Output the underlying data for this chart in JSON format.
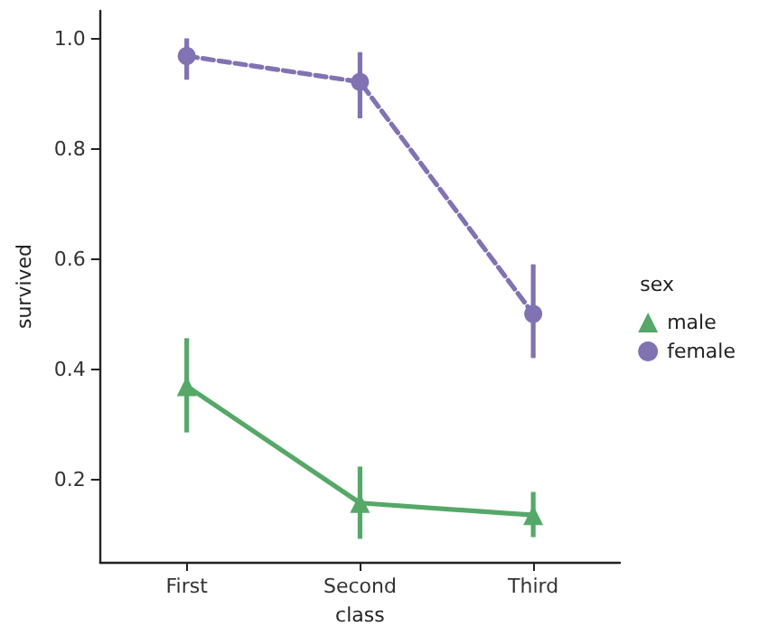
{
  "chart_data": {
    "type": "line",
    "xlabel": "class",
    "ylabel": "survived",
    "legend_title": "sex",
    "categories": [
      "First",
      "Second",
      "Third"
    ],
    "series": [
      {
        "name": "male",
        "color": "#55a868",
        "marker": "triangle",
        "line_style": "solid",
        "values": [
          0.369,
          0.157,
          0.135
        ],
        "errors": [
          [
            0.285,
            0.456
          ],
          [
            0.092,
            0.223
          ],
          [
            0.095,
            0.177
          ]
        ]
      },
      {
        "name": "female",
        "color": "#8172b3",
        "marker": "circle",
        "line_style": "dashed",
        "values": [
          0.968,
          0.921,
          0.5
        ],
        "errors": [
          [
            0.925,
            1.0
          ],
          [
            0.855,
            0.975
          ],
          [
            0.42,
            0.59
          ]
        ]
      }
    ],
    "ylim": [
      0.05,
      1.05
    ],
    "yticks": [
      0.2,
      0.4,
      0.6,
      0.8,
      {
        "value": 1,
        "label": "1.0"
      }
    ],
    "grid": false,
    "legend": "right"
  }
}
